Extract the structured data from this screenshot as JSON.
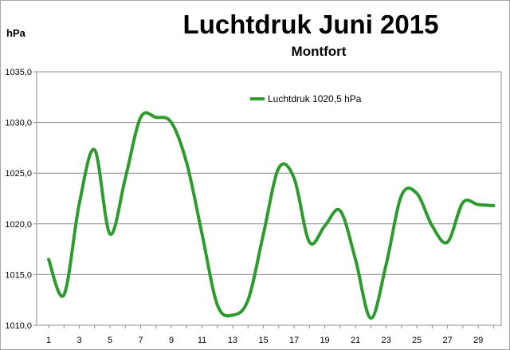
{
  "chart_data": {
    "type": "line",
    "title": "Luchtdruk Juni 2015",
    "subtitle": "Montfort",
    "ylabel": "hPa",
    "xlabel": "",
    "ylim": [
      1010,
      1035
    ],
    "yticks": [
      "1010,0",
      "1015,0",
      "1020,0",
      "1025,0",
      "1030,0",
      "1035,0"
    ],
    "xticks": [
      "1",
      "3",
      "5",
      "7",
      "9",
      "11",
      "13",
      "15",
      "17",
      "19",
      "21",
      "23",
      "25",
      "27",
      "29"
    ],
    "x": [
      1,
      2,
      3,
      4,
      5,
      6,
      7,
      8,
      9,
      10,
      11,
      12,
      13,
      14,
      15,
      16,
      17,
      18,
      19,
      20,
      21,
      22,
      23,
      24,
      25,
      26,
      27,
      28,
      29,
      30
    ],
    "series": [
      {
        "name": "Luchtdruk 1020,5 hPa",
        "color": "#2e9b2e",
        "values": [
          1016.5,
          1013.0,
          1022.0,
          1027.3,
          1019.0,
          1024.5,
          1030.5,
          1030.5,
          1030.0,
          1026.0,
          1019.0,
          1012.0,
          1011.0,
          1012.5,
          1019.0,
          1025.5,
          1024.5,
          1018.2,
          1019.8,
          1021.3,
          1016.5,
          1010.7,
          1016.0,
          1022.8,
          1023.0,
          1019.8,
          1018.2,
          1022.1,
          1021.9,
          1021.8
        ]
      }
    ],
    "grid": true,
    "legend_position": "top"
  }
}
